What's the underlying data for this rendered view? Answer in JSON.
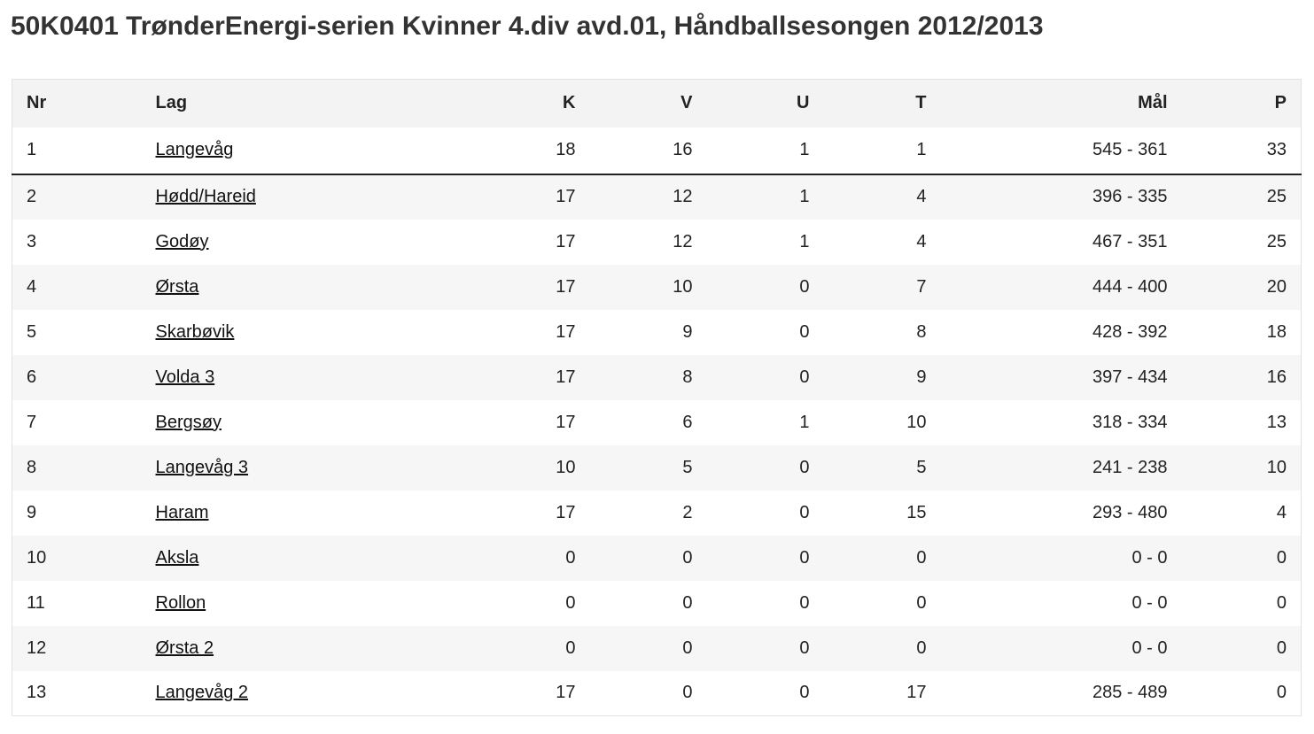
{
  "page": {
    "title": "50K0401 TrønderEnergi-serien Kvinner 4.div avd.01, Håndballsesongen 2012/2013"
  },
  "table": {
    "headers": {
      "nr": "Nr",
      "lag": "Lag",
      "k": "K",
      "v": "V",
      "u": "U",
      "t": "T",
      "mal": "Mål",
      "p": "P"
    },
    "rows": [
      {
        "nr": "1",
        "lag": "Langevåg",
        "k": "18",
        "v": "16",
        "u": "1",
        "t": "1",
        "mal": "545 - 361",
        "p": "33"
      },
      {
        "nr": "2",
        "lag": "Hødd/Hareid",
        "k": "17",
        "v": "12",
        "u": "1",
        "t": "4",
        "mal": "396 - 335",
        "p": "25"
      },
      {
        "nr": "3",
        "lag": "Godøy",
        "k": "17",
        "v": "12",
        "u": "1",
        "t": "4",
        "mal": "467 - 351",
        "p": "25"
      },
      {
        "nr": "4",
        "lag": "Ørsta",
        "k": "17",
        "v": "10",
        "u": "0",
        "t": "7",
        "mal": "444 - 400",
        "p": "20"
      },
      {
        "nr": "5",
        "lag": "Skarbøvik",
        "k": "17",
        "v": "9",
        "u": "0",
        "t": "8",
        "mal": "428 - 392",
        "p": "18"
      },
      {
        "nr": "6",
        "lag": "Volda 3",
        "k": "17",
        "v": "8",
        "u": "0",
        "t": "9",
        "mal": "397 - 434",
        "p": "16"
      },
      {
        "nr": "7",
        "lag": "Bergsøy",
        "k": "17",
        "v": "6",
        "u": "1",
        "t": "10",
        "mal": "318 - 334",
        "p": "13"
      },
      {
        "nr": "8",
        "lag": "Langevåg 3",
        "k": "10",
        "v": "5",
        "u": "0",
        "t": "5",
        "mal": "241 - 238",
        "p": "10"
      },
      {
        "nr": "9",
        "lag": "Haram",
        "k": "17",
        "v": "2",
        "u": "0",
        "t": "15",
        "mal": "293 - 480",
        "p": "4"
      },
      {
        "nr": "10",
        "lag": "Aksla",
        "k": "0",
        "v": "0",
        "u": "0",
        "t": "0",
        "mal": "0 - 0",
        "p": "0"
      },
      {
        "nr": "11",
        "lag": "Rollon",
        "k": "0",
        "v": "0",
        "u": "0",
        "t": "0",
        "mal": "0 - 0",
        "p": "0"
      },
      {
        "nr": "12",
        "lag": "Ørsta 2",
        "k": "0",
        "v": "0",
        "u": "0",
        "t": "0",
        "mal": "0 - 0",
        "p": "0"
      },
      {
        "nr": "13",
        "lag": "Langevåg 2",
        "k": "17",
        "v": "0",
        "u": "0",
        "t": "17",
        "mal": "285 - 489",
        "p": "0"
      }
    ]
  }
}
